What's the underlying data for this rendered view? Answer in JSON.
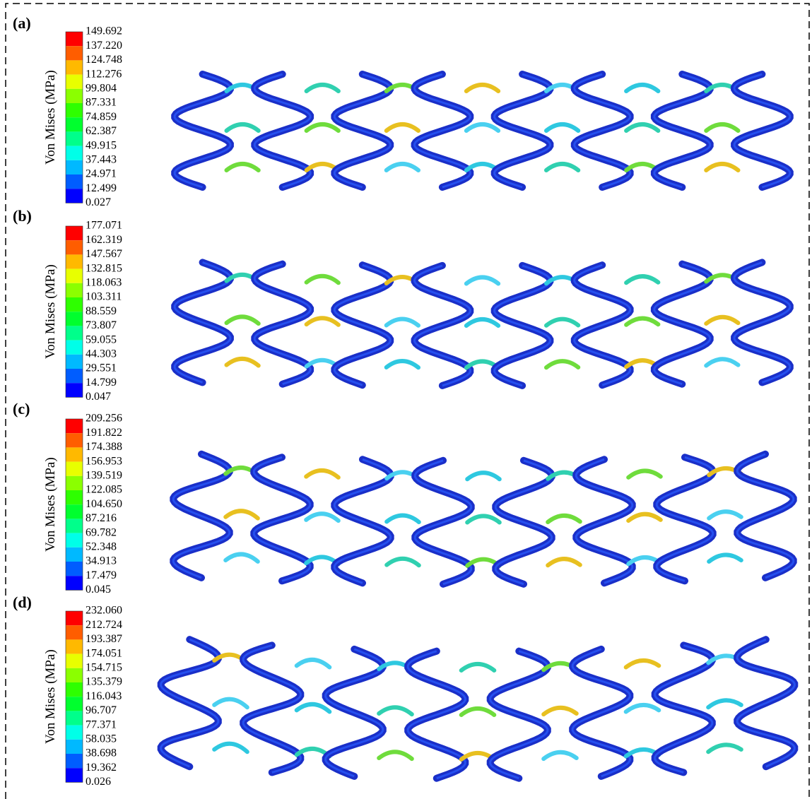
{
  "panels": [
    {
      "label": "(a)",
      "legend_title": "Von Mises (MPa)",
      "ticks": [
        "149.692",
        "137.220",
        "124.748",
        "112.276",
        "99.804",
        "87.331",
        "74.859",
        "62.387",
        "49.915",
        "37.443",
        "24.971",
        "12.499",
        "0.027"
      ]
    },
    {
      "label": "(b)",
      "legend_title": "Von Mises (MPa)",
      "ticks": [
        "177.071",
        "162.319",
        "147.567",
        "132.815",
        "118.063",
        "103.311",
        "88.559",
        "73.807",
        "59.055",
        "44.303",
        "29.551",
        "14.799",
        "0.047"
      ]
    },
    {
      "label": "(c)",
      "legend_title": "Von Mises (MPa)",
      "ticks": [
        "209.256",
        "191.822",
        "174.388",
        "156.953",
        "139.519",
        "122.085",
        "104.650",
        "87.216",
        "69.782",
        "52.348",
        "34.913",
        "17.479",
        "0.045"
      ]
    },
    {
      "label": "(d)",
      "legend_title": "Von Mises (MPa)",
      "ticks": [
        "232.060",
        "212.724",
        "193.387",
        "174.051",
        "154.715",
        "135.379",
        "116.043",
        "96.707",
        "77.371",
        "58.035",
        "38.698",
        "19.362",
        "0.026"
      ]
    }
  ]
}
